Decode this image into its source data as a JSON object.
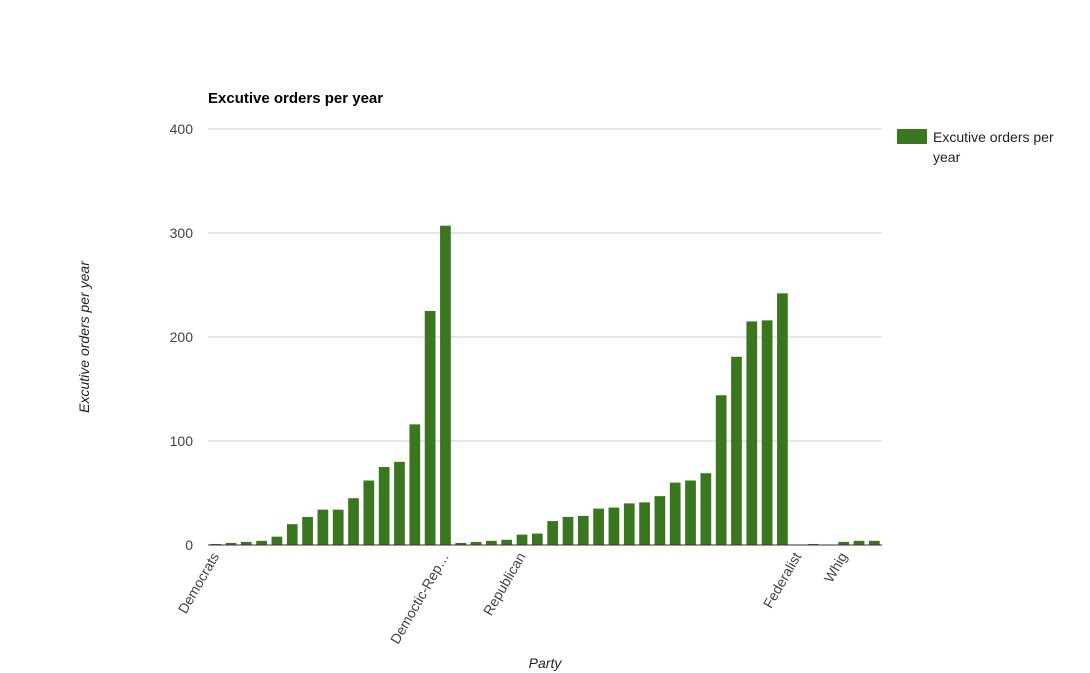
{
  "chart_data": {
    "type": "bar",
    "title": "Excutive orders per year",
    "xlabel": "Party",
    "ylabel": "Excutive orders per year",
    "ylim": [
      0,
      400
    ],
    "yticks": [
      "0",
      "100",
      "200",
      "300",
      "400"
    ],
    "grid": true,
    "legend_position": "right",
    "category_labels": [
      {
        "label": "Democrats",
        "index": 0
      },
      {
        "label": "Democtic-Rep…",
        "index": 15
      },
      {
        "label": "Republican",
        "index": 20
      },
      {
        "label": "Federalist",
        "index": 38
      },
      {
        "label": "Whig",
        "index": 41
      }
    ],
    "series": [
      {
        "name": "Excutive orders per year",
        "color": "#3a761d",
        "values": [
          1,
          2,
          3,
          4,
          8,
          20,
          27,
          34,
          34,
          45,
          62,
          75,
          80,
          116,
          225,
          307,
          2,
          3,
          4,
          5,
          10,
          11,
          23,
          27,
          28,
          35,
          36,
          40,
          41,
          47,
          60,
          62,
          69,
          144,
          181,
          215,
          216,
          242,
          0,
          1,
          0,
          3,
          4,
          4
        ]
      }
    ]
  }
}
